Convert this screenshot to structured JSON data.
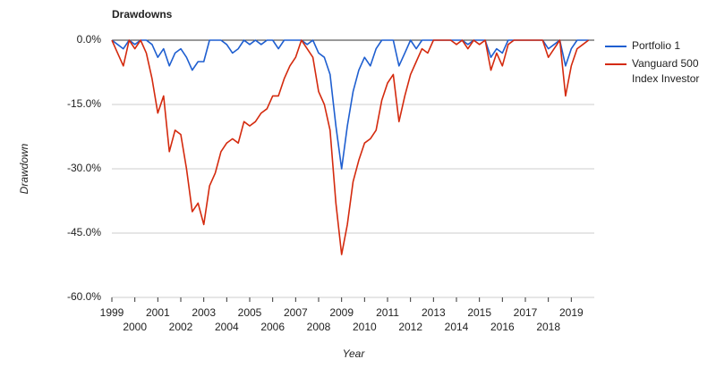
{
  "chart_data": {
    "type": "line",
    "title": "Drawdowns",
    "x_label": "Year",
    "y_label": "Drawdown",
    "x": [
      1999,
      1999.25,
      1999.5,
      1999.75,
      2000,
      2000.25,
      2000.5,
      2000.75,
      2001,
      2001.25,
      2001.5,
      2001.75,
      2002,
      2002.25,
      2002.5,
      2002.75,
      2003,
      2003.25,
      2003.5,
      2003.75,
      2004,
      2004.25,
      2004.5,
      2004.75,
      2005,
      2005.25,
      2005.5,
      2005.75,
      2006,
      2006.25,
      2006.5,
      2006.75,
      2007,
      2007.25,
      2007.5,
      2007.75,
      2008,
      2008.25,
      2008.5,
      2008.75,
      2009,
      2009.25,
      2009.5,
      2009.75,
      2010,
      2010.25,
      2010.5,
      2010.75,
      2011,
      2011.25,
      2011.5,
      2011.75,
      2012,
      2012.25,
      2012.5,
      2012.75,
      2013,
      2013.25,
      2013.5,
      2013.75,
      2014,
      2014.25,
      2014.5,
      2014.75,
      2015,
      2015.25,
      2015.5,
      2015.75,
      2016,
      2016.25,
      2016.5,
      2016.75,
      2017,
      2017.25,
      2017.5,
      2017.75,
      2018,
      2018.25,
      2018.5,
      2018.75,
      2019,
      2019.25,
      2019.5,
      2019.75
    ],
    "series": [
      {
        "name": "Portfolio 1",
        "color": "#1f5fd0",
        "values": [
          0,
          -1,
          -2,
          0,
          -1,
          0,
          0,
          -1,
          -4,
          -2,
          -6,
          -3,
          -2,
          -4,
          -7,
          -5,
          -5,
          0,
          0,
          0,
          -1,
          -3,
          -2,
          0,
          -1,
          0,
          -1,
          0,
          0,
          -2,
          0,
          0,
          0,
          0,
          -1,
          0,
          -3,
          -4,
          -8,
          -20,
          -30,
          -20,
          -12,
          -7,
          -4,
          -6,
          -2,
          0,
          0,
          0,
          -6,
          -3,
          0,
          -2,
          0,
          0,
          0,
          0,
          0,
          0,
          0,
          0,
          -1,
          0,
          0,
          0,
          -4,
          -2,
          -3,
          0,
          0,
          0,
          0,
          0,
          0,
          0,
          -2,
          -1,
          0,
          -6,
          -2,
          0,
          0,
          0
        ]
      },
      {
        "name": "Vanguard 500 Index Investor",
        "color": "#d42a0e",
        "values": [
          0,
          -3,
          -6,
          0,
          -2,
          0,
          -3,
          -9,
          -17,
          -13,
          -26,
          -21,
          -22,
          -30,
          -40,
          -38,
          -43,
          -34,
          -31,
          -26,
          -24,
          -23,
          -24,
          -19,
          -20,
          -19,
          -17,
          -16,
          -13,
          -13,
          -9,
          -6,
          -4,
          0,
          -2,
          -4,
          -12,
          -15,
          -21,
          -38,
          -50,
          -43,
          -33,
          -28,
          -24,
          -23,
          -21,
          -14,
          -10,
          -8,
          -19,
          -13,
          -8,
          -5,
          -2,
          -3,
          0,
          0,
          0,
          0,
          -1,
          0,
          -2,
          0,
          -1,
          0,
          -7,
          -3,
          -6,
          -1,
          0,
          0,
          0,
          0,
          0,
          0,
          -4,
          -2,
          0,
          -13,
          -6,
          -2,
          -1,
          0
        ]
      }
    ],
    "xlim": [
      1999,
      2020
    ],
    "xticks": [
      1999,
      2000,
      2001,
      2002,
      2003,
      2004,
      2005,
      2006,
      2007,
      2008,
      2009,
      2010,
      2011,
      2012,
      2013,
      2014,
      2015,
      2016,
      2017,
      2018,
      2019
    ],
    "ylim": [
      -60,
      0
    ],
    "yticks": [
      {
        "value": 0,
        "label": "0.0%"
      },
      {
        "value": -15,
        "label": "-15.0%"
      },
      {
        "value": -30,
        "label": "-30.0%"
      },
      {
        "value": -45,
        "label": "-45.0%"
      },
      {
        "value": -60,
        "label": "-60.0%"
      }
    ],
    "grid": true,
    "legend": "right"
  }
}
